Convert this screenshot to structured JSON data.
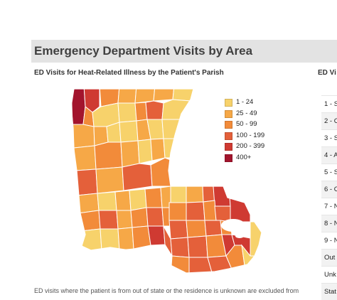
{
  "section_title": "Emergency Department Visits by Area",
  "map": {
    "title": "ED Visits for Heat-Related Illness by the Patient's Parish",
    "legend": [
      {
        "label": "1 - 24",
        "color": "#f7d26b"
      },
      {
        "label": "25 - 49",
        "color": "#f6a847"
      },
      {
        "label": "50 - 99",
        "color": "#f28b3a"
      },
      {
        "label": "100 - 199",
        "color": "#e4603a"
      },
      {
        "label": "200 - 399",
        "color": "#cf3a32"
      },
      {
        "label": "400+",
        "color": "#a3142d"
      }
    ]
  },
  "right_panel": {
    "title": "ED Vi",
    "rows": [
      "1 - S",
      "2 - C",
      "3 - S",
      "4 - A",
      "5 - S",
      "6 - C",
      "7 - N",
      "8 - N",
      "9 - N",
      "Out",
      "Unk",
      "Stat"
    ]
  },
  "footnote": "ED visits where the patient is from out of state or the residence is unknown are excluded from"
}
